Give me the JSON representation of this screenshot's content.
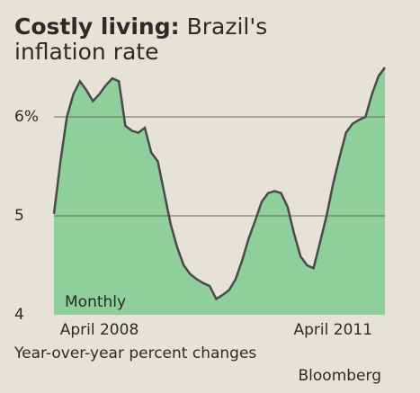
{
  "chart_data": {
    "type": "area",
    "title": "Costly living:",
    "subtitle": "Brazil's inflation rate",
    "annotation": "Monthly",
    "note": "Year-over-year percent changes",
    "source": "Bloomberg",
    "categories": [
      null,
      null,
      null,
      null,
      null,
      null,
      null,
      "April 2008",
      null,
      null,
      null,
      null,
      null,
      null,
      null,
      null,
      null,
      null,
      null,
      null,
      null,
      null,
      null,
      null,
      null,
      null,
      null,
      null,
      null,
      null,
      null,
      null,
      null,
      null,
      null,
      null,
      null,
      null,
      null,
      null,
      null,
      null,
      null,
      "April 2011",
      null,
      null,
      null,
      null,
      null,
      null,
      null,
      null
    ],
    "values": [
      5.02,
      5.55,
      6.0,
      6.23,
      6.36,
      6.27,
      6.16,
      6.23,
      6.32,
      6.39,
      6.36,
      5.91,
      5.86,
      5.84,
      5.89,
      5.64,
      5.55,
      5.23,
      4.91,
      4.68,
      4.5,
      4.41,
      4.36,
      4.32,
      4.29,
      4.16,
      4.2,
      4.25,
      4.36,
      4.55,
      4.77,
      4.95,
      5.14,
      5.23,
      5.25,
      5.23,
      5.09,
      4.82,
      4.59,
      4.5,
      4.47,
      4.73,
      5.0,
      5.32,
      5.59,
      5.84,
      5.93,
      5.97,
      6.0,
      6.23,
      6.41,
      6.5
    ],
    "color": "#8ecf9b",
    "line_color": "#4a4a4a",
    "ylim": [
      4,
      6.6
    ],
    "yticks": [
      4,
      5,
      {
        "value": 6,
        "label": "6%"
      }
    ],
    "grid": true
  }
}
